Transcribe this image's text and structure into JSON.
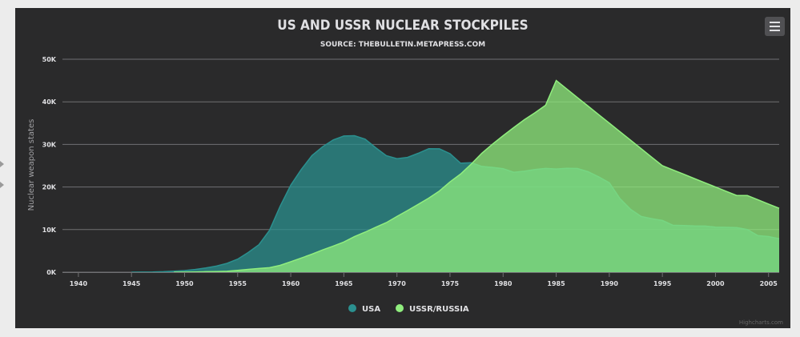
{
  "chart_data": {
    "type": "area",
    "title": "US AND USSR NUCLEAR STOCKPILES",
    "subtitle": "SOURCE: THEBULLETIN.METAPRESS.COM",
    "ylabel": "Nuclear weapon states",
    "xlabel": "",
    "xlim": [
      1938.5,
      2006
    ],
    "ylim": [
      0,
      50000
    ],
    "x_ticks": [
      1940,
      1945,
      1950,
      1955,
      1960,
      1965,
      1970,
      1975,
      1980,
      1985,
      1990,
      1995,
      2000,
      2005
    ],
    "y_ticks": [
      {
        "value": 0,
        "label": "0K"
      },
      {
        "value": 10000,
        "label": "10K"
      },
      {
        "value": 20000,
        "label": "20K"
      },
      {
        "value": 30000,
        "label": "30K"
      },
      {
        "value": 40000,
        "label": "40K"
      },
      {
        "value": 50000,
        "label": "50K"
      }
    ],
    "grid": true,
    "legend_position": "bottom-center",
    "series": [
      {
        "name": "USA",
        "color": "#2b908f",
        "x": [
          1945,
          1946,
          1947,
          1948,
          1949,
          1950,
          1951,
          1952,
          1953,
          1954,
          1955,
          1956,
          1957,
          1958,
          1959,
          1960,
          1961,
          1962,
          1963,
          1964,
          1965,
          1966,
          1967,
          1968,
          1969,
          1970,
          1971,
          1972,
          1973,
          1974,
          1975,
          1976,
          1977,
          1978,
          1979,
          1980,
          1981,
          1982,
          1983,
          1984,
          1985,
          1986,
          1987,
          1988,
          1989,
          1990,
          1991,
          1992,
          1993,
          1994,
          1995,
          1996,
          1997,
          1998,
          1999,
          2000,
          2001,
          2002,
          2003,
          2004,
          2005,
          2006
        ],
        "values": [
          6,
          11,
          32,
          110,
          235,
          369,
          640,
          1005,
          1436,
          2063,
          3057,
          4618,
          6444,
          9822,
          15468,
          20434,
          24126,
          27387,
          29459,
          31056,
          31982,
          32040,
          31233,
          29224,
          27342,
          26662,
          26956,
          27912,
          28999,
          28965,
          27826,
          25579,
          25722,
          24826,
          24605,
          24304,
          23464,
          23708,
          24099,
          24357,
          24237,
          24401,
          24344,
          23586,
          22380,
          21004,
          17287,
          14747,
          13076,
          12555,
          12144,
          11009,
          10950,
          10871,
          10824,
          10577,
          10526,
          10457,
          10027,
          8570,
          8360,
          7853
        ]
      },
      {
        "name": "USSR/RUSSIA",
        "color": "#90ee7e",
        "x": [
          1949,
          1950,
          1951,
          1952,
          1953,
          1954,
          1955,
          1956,
          1957,
          1958,
          1959,
          1960,
          1961,
          1962,
          1963,
          1964,
          1965,
          1966,
          1967,
          1968,
          1969,
          1970,
          1971,
          1972,
          1973,
          1974,
          1975,
          1976,
          1977,
          1978,
          1979,
          1980,
          1981,
          1982,
          1983,
          1984,
          1985,
          1986,
          1987,
          1988,
          1989,
          1990,
          1991,
          1992,
          1993,
          1994,
          1995,
          1996,
          1997,
          1998,
          1999,
          2000,
          2001,
          2002,
          2003,
          2004,
          2005,
          2006
        ],
        "values": [
          5,
          25,
          50,
          120,
          150,
          200,
          426,
          660,
          869,
          1060,
          1605,
          2471,
          3322,
          4238,
          5221,
          6129,
          7089,
          8339,
          9399,
          10538,
          11643,
          13092,
          14478,
          15915,
          17385,
          19055,
          21205,
          23044,
          25393,
          27935,
          30062,
          32049,
          33952,
          35804,
          37431,
          39197,
          45000,
          43000,
          41000,
          39000,
          37000,
          35000,
          33000,
          31000,
          29000,
          27000,
          25000,
          24000,
          23000,
          22000,
          21000,
          20000,
          19000,
          18000,
          18000,
          17000,
          16000,
          15000
        ]
      }
    ]
  },
  "credits": "Highcharts.com"
}
